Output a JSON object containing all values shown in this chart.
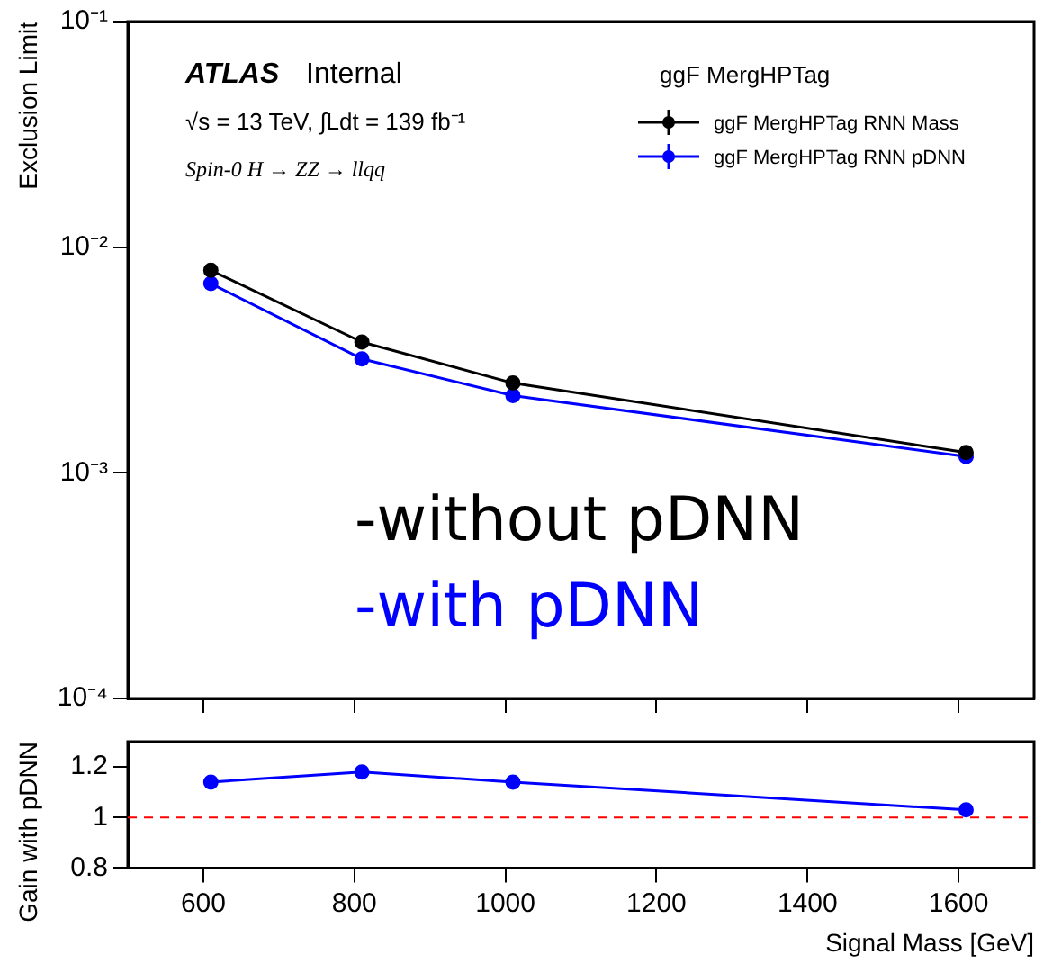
{
  "chart_data": [
    {
      "type": "line",
      "ylabel": "Exclusion Limit",
      "legend_title": "ggF MergHPTag",
      "x": [
        610,
        810,
        1010,
        1610
      ],
      "xlim": [
        500,
        1700
      ],
      "xticks": [
        600,
        800,
        1000,
        1200,
        1400,
        1600
      ],
      "ylim": [
        0.0001,
        0.1
      ],
      "yticks": [
        {
          "value": 0.0001,
          "label": "10⁻⁴"
        },
        {
          "value": 0.001,
          "label": "10⁻³"
        },
        {
          "value": 0.01,
          "label": "10⁻²"
        },
        {
          "value": 0.1,
          "label": "10⁻¹"
        }
      ],
      "log": "y",
      "tick_labels": "y",
      "legend": "top right",
      "marker": "circle",
      "line_style": "solid",
      "series": [
        {
          "name": "ggF MergHPTag RNN Mass",
          "color": "#000000",
          "values": [
            0.0079,
            0.0038,
            0.0025,
            0.00123
          ]
        },
        {
          "name": "ggF MergHPTag RNN pDNN",
          "color": "#0000ff",
          "values": [
            0.0069,
            0.0032,
            0.0022,
            0.00118
          ]
        }
      ],
      "annotations": [
        "ATLAS",
        "Internal",
        "√s = 13 TeV, ∫Ldt = 139 fb⁻¹",
        "Spin-0 H → ZZ → llqq",
        "-without pDNN",
        "-with pDNN"
      ]
    },
    {
      "type": "line",
      "xlabel": "Signal Mass [GeV]",
      "ylabel": "Gain with pDNN",
      "x": [
        610,
        810,
        1010,
        1610
      ],
      "xlim": [
        500,
        1700
      ],
      "xticks": [
        600,
        800,
        1000,
        1200,
        1400,
        1600
      ],
      "ylim": [
        0.8,
        1.3
      ],
      "yticks": [
        0.8,
        1,
        1.2
      ],
      "marker": "circle",
      "line_style": "solid",
      "series": [
        {
          "color": "#0000ff",
          "values": [
            1.14,
            1.18,
            1.14,
            1.03
          ]
        }
      ],
      "ref_lines": [
        {
          "axis": "y",
          "value": 1,
          "color": "#ff0000",
          "line_style": "dashed"
        }
      ]
    }
  ]
}
